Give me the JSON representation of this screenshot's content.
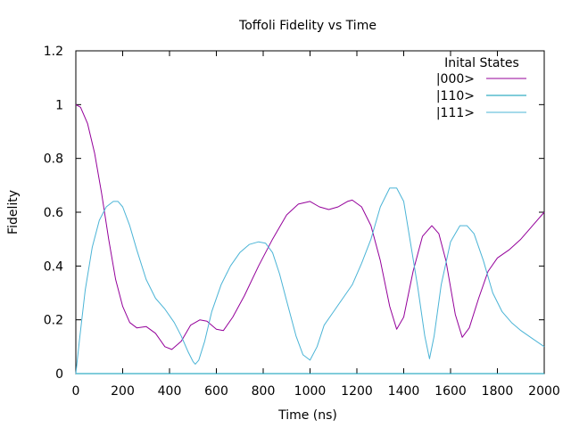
{
  "chart_data": {
    "type": "line",
    "title": "Toffoli Fidelity vs Time",
    "xlabel": "Time (ns)",
    "ylabel": "Fidelity",
    "xlim": [
      0,
      2000
    ],
    "ylim": [
      0,
      1.2
    ],
    "xticks": [
      0,
      200,
      400,
      600,
      800,
      1000,
      1200,
      1400,
      1600,
      1800,
      2000
    ],
    "xtick_labels": [
      "0",
      "200",
      "400",
      "600",
      "800",
      "1000",
      "1200",
      "1400",
      "1600",
      "1800",
      "2000"
    ],
    "yticks": [
      0,
      0.2,
      0.4,
      0.6,
      0.8,
      1,
      1.2
    ],
    "ytick_labels": [
      "0",
      "0.2",
      "0.4",
      "0.6",
      "0.8",
      "1",
      "1.2"
    ],
    "grid": false,
    "legend": {
      "title": "Inital States",
      "position": "top-right"
    },
    "series": [
      {
        "name": "|000>",
        "color": "#94009a",
        "x": [
          0,
          20,
          50,
          80,
          110,
          140,
          170,
          200,
          230,
          260,
          300,
          340,
          380,
          410,
          450,
          490,
          530,
          560,
          600,
          630,
          670,
          720,
          780,
          840,
          900,
          950,
          1000,
          1040,
          1080,
          1120,
          1160,
          1180,
          1220,
          1260,
          1300,
          1340,
          1370,
          1400,
          1440,
          1480,
          1520,
          1550,
          1580,
          1620,
          1650,
          1680,
          1720,
          1760,
          1800,
          1850,
          1900,
          1950,
          2000
        ],
        "y": [
          1.0,
          0.99,
          0.93,
          0.82,
          0.67,
          0.5,
          0.35,
          0.25,
          0.19,
          0.17,
          0.175,
          0.15,
          0.1,
          0.09,
          0.12,
          0.18,
          0.2,
          0.195,
          0.165,
          0.16,
          0.21,
          0.29,
          0.4,
          0.5,
          0.59,
          0.63,
          0.64,
          0.62,
          0.61,
          0.62,
          0.64,
          0.645,
          0.62,
          0.55,
          0.42,
          0.25,
          0.165,
          0.21,
          0.38,
          0.51,
          0.55,
          0.52,
          0.42,
          0.22,
          0.135,
          0.17,
          0.28,
          0.38,
          0.43,
          0.46,
          0.5,
          0.55,
          0.6
        ]
      },
      {
        "name": "|110>",
        "color": "#0098b4",
        "x": [
          0,
          2000
        ],
        "y": [
          0.0,
          0.0
        ]
      },
      {
        "name": "|111>",
        "color": "#4bb4d6",
        "x": [
          0,
          15,
          40,
          70,
          100,
          130,
          160,
          180,
          200,
          230,
          260,
          300,
          340,
          380,
          420,
          450,
          480,
          500,
          510,
          525,
          550,
          580,
          620,
          660,
          700,
          740,
          780,
          810,
          840,
          870,
          900,
          940,
          970,
          1000,
          1030,
          1060,
          1100,
          1140,
          1180,
          1220,
          1260,
          1300,
          1340,
          1370,
          1400,
          1430,
          1460,
          1490,
          1510,
          1530,
          1560,
          1600,
          1640,
          1670,
          1700,
          1740,
          1780,
          1820,
          1860,
          1900,
          1950,
          2000
        ],
        "y": [
          0.0,
          0.12,
          0.31,
          0.47,
          0.57,
          0.62,
          0.64,
          0.64,
          0.62,
          0.55,
          0.46,
          0.35,
          0.28,
          0.24,
          0.19,
          0.14,
          0.08,
          0.045,
          0.035,
          0.05,
          0.12,
          0.23,
          0.33,
          0.4,
          0.45,
          0.48,
          0.49,
          0.485,
          0.45,
          0.37,
          0.27,
          0.14,
          0.07,
          0.05,
          0.1,
          0.18,
          0.23,
          0.28,
          0.33,
          0.41,
          0.5,
          0.62,
          0.69,
          0.69,
          0.64,
          0.48,
          0.32,
          0.14,
          0.055,
          0.14,
          0.33,
          0.49,
          0.55,
          0.55,
          0.52,
          0.42,
          0.3,
          0.23,
          0.19,
          0.16,
          0.13,
          0.1
        ]
      }
    ]
  }
}
